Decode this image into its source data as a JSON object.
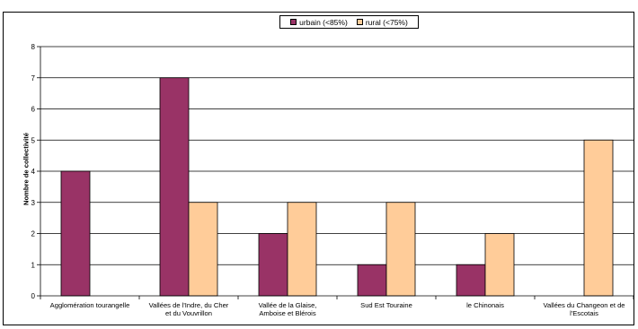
{
  "chart_data": {
    "type": "bar",
    "title": "",
    "ylabel": "Nombre de collectivité",
    "xlabel": "",
    "ylim": [
      0,
      8
    ],
    "yticks": [
      0,
      1,
      2,
      3,
      4,
      5,
      6,
      7,
      8
    ],
    "grid": true,
    "legend_position": "top-center",
    "categories": [
      [
        "Agglomération tourangelle"
      ],
      [
        "Vallées de l'Indre, du Cher",
        "et du Vouvrillon"
      ],
      [
        "Vallée de la Glaise,",
        "Amboise et Blérois"
      ],
      [
        "Sud Est Touraine"
      ],
      [
        "le Chinonais"
      ],
      [
        "Vallées du Changeon et de",
        "l'Escotais"
      ]
    ],
    "series": [
      {
        "name": "urbain (<85%)",
        "color": "#993366",
        "values": [
          4,
          7,
          2,
          1,
          1,
          0
        ]
      },
      {
        "name": "rural (<75%)",
        "color": "#FFCC99",
        "values": [
          0,
          3,
          3,
          3,
          2,
          5
        ]
      }
    ]
  }
}
